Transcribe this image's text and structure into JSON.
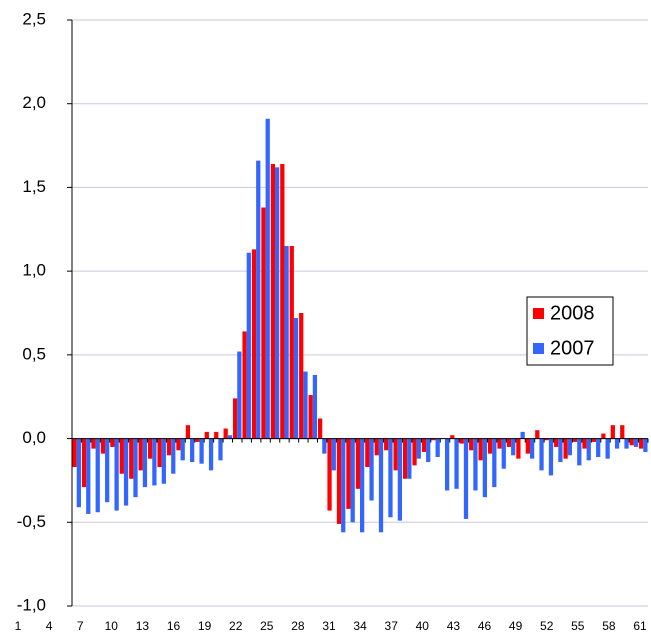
{
  "chart_data": {
    "type": "bar",
    "categories": [
      "1",
      null,
      null,
      "4",
      null,
      null,
      "7",
      null,
      null,
      "10",
      null,
      null,
      "13",
      null,
      null,
      "16",
      null,
      null,
      "19",
      null,
      null,
      "22",
      null,
      null,
      "25",
      null,
      null,
      "28",
      null,
      null,
      "31",
      null,
      null,
      "34",
      null,
      null,
      "37",
      null,
      null,
      "40",
      null,
      null,
      "43",
      null,
      null,
      "46",
      null,
      null,
      "49",
      null,
      null,
      "52",
      null,
      null,
      "55",
      null,
      null,
      "58",
      null,
      null,
      "61"
    ],
    "series": [
      {
        "name": "2008",
        "color": "#ff0000",
        "values": [
          -0.17,
          -0.29,
          -0.06,
          -0.09,
          -0.05,
          -0.21,
          -0.24,
          -0.19,
          -0.12,
          -0.17,
          -0.1,
          -0.07,
          0.08,
          -0.02,
          0.04,
          0.04,
          0.06,
          0.24,
          0.64,
          1.13,
          1.38,
          1.64,
          1.64,
          1.15,
          0.75,
          0.26,
          0.12,
          -0.43,
          -0.51,
          -0.42,
          -0.3,
          -0.17,
          -0.1,
          -0.07,
          -0.19,
          -0.24,
          -0.16,
          -0.08,
          -0.01,
          0.0,
          0.02,
          -0.03,
          -0.07,
          -0.13,
          -0.09,
          -0.06,
          -0.05,
          -0.12,
          -0.09,
          0.05,
          -0.01,
          -0.05,
          -0.12,
          -0.02,
          -0.06,
          -0.02,
          0.03,
          0.08,
          0.08,
          -0.04,
          -0.06
        ]
      },
      {
        "name": "2007",
        "color": "#3366ff",
        "values": [
          -0.41,
          -0.45,
          -0.44,
          -0.38,
          -0.43,
          -0.4,
          -0.35,
          -0.29,
          -0.28,
          -0.27,
          -0.21,
          -0.13,
          -0.14,
          -0.15,
          -0.19,
          -0.13,
          0.02,
          0.52,
          1.11,
          1.66,
          1.91,
          1.62,
          1.15,
          0.72,
          0.4,
          0.38,
          -0.09,
          -0.19,
          -0.56,
          -0.5,
          -0.56,
          -0.37,
          -0.56,
          -0.47,
          -0.49,
          -0.24,
          -0.12,
          -0.14,
          -0.11,
          -0.31,
          -0.3,
          -0.48,
          -0.31,
          -0.35,
          -0.29,
          -0.18,
          -0.1,
          0.04,
          -0.12,
          -0.19,
          -0.22,
          -0.14,
          -0.1,
          -0.16,
          -0.13,
          -0.11,
          -0.12,
          -0.06,
          -0.06,
          -0.05,
          -0.08
        ]
      }
    ],
    "ylim": [
      -1.0,
      2.5
    ],
    "yticks": [
      {
        "value": -1.0,
        "label": "-1,0"
      },
      {
        "value": -0.5,
        "label": "-0,5"
      },
      {
        "value": 0.0,
        "label": "0,0"
      },
      {
        "value": 0.5,
        "label": "0,5"
      },
      {
        "value": 1.0,
        "label": "1,0"
      },
      {
        "value": 1.5,
        "label": "1,5"
      },
      {
        "value": 2.0,
        "label": "2,0"
      },
      {
        "value": 2.5,
        "label": "2,5"
      }
    ],
    "grid": true,
    "legend": "right"
  }
}
